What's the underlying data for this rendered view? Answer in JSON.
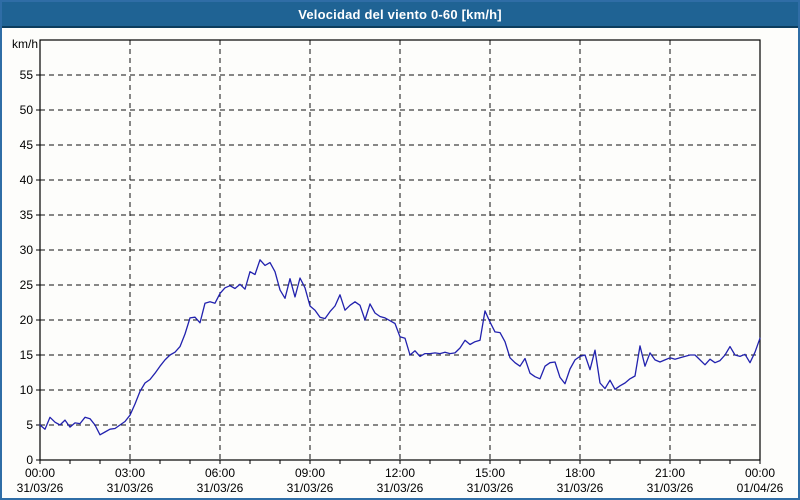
{
  "window": {
    "title": "Velocidad del viento 0-60 [km/h]"
  },
  "colors": {
    "titlebar_bg": "#1F6394",
    "titlebar_border": "#0C3D5E",
    "window_border": "#2F6DA6",
    "plot_bg": "#FDFDFB",
    "grid": "#111111",
    "axis": "#000000",
    "text": "#000000",
    "line": "#2222AE"
  },
  "chart_data": {
    "type": "line",
    "title": "Velocidad del viento 0-60 [km/h]",
    "ylabel": "km/h",
    "ylim": [
      0,
      60
    ],
    "yticks": [
      0,
      5,
      10,
      15,
      20,
      25,
      30,
      35,
      40,
      45,
      50,
      55
    ],
    "grid": true,
    "legend": "none",
    "x_total_hours": 24,
    "sample_interval_minutes": 10,
    "minor_tick_every_hours": 1,
    "xticks": [
      {
        "time": "00:00",
        "date": "31/03/26",
        "hour": 0
      },
      {
        "time": "03:00",
        "date": "31/03/26",
        "hour": 3
      },
      {
        "time": "06:00",
        "date": "31/03/26",
        "hour": 6
      },
      {
        "time": "09:00",
        "date": "31/03/26",
        "hour": 9
      },
      {
        "time": "12:00",
        "date": "31/03/26",
        "hour": 12
      },
      {
        "time": "15:00",
        "date": "31/03/26",
        "hour": 15
      },
      {
        "time": "18:00",
        "date": "31/03/26",
        "hour": 18
      },
      {
        "time": "21:00",
        "date": "31/03/26",
        "hour": 21
      },
      {
        "time": "00:00",
        "date": "01/04/26",
        "hour": 24
      }
    ],
    "series": [
      {
        "name": "Velocidad del viento",
        "color": "#2222AE",
        "values": [
          5.0,
          4.4,
          6.1,
          5.4,
          5.0,
          5.7,
          4.7,
          5.3,
          5.2,
          6.1,
          5.9,
          5.0,
          3.6,
          4.0,
          4.4,
          4.5,
          5.0,
          5.5,
          6.4,
          8.0,
          9.8,
          11.0,
          11.5,
          12.4,
          13.4,
          14.3,
          15.0,
          15.4,
          16.2,
          18.0,
          20.3,
          20.4,
          19.6,
          22.4,
          22.6,
          22.4,
          23.8,
          24.6,
          24.9,
          24.5,
          25.1,
          24.4,
          26.9,
          26.5,
          28.6,
          27.8,
          28.2,
          26.9,
          24.3,
          23.1,
          25.9,
          23.3,
          26.0,
          24.6,
          22.0,
          21.4,
          20.4,
          20.2,
          21.2,
          22.0,
          23.6,
          21.4,
          22.1,
          22.6,
          22.1,
          20.0,
          22.3,
          21.0,
          20.5,
          20.3,
          19.9,
          19.5,
          17.6,
          17.4,
          15.0,
          15.6,
          14.8,
          15.2,
          15.2,
          15.3,
          15.2,
          15.4,
          15.2,
          15.3,
          16.0,
          17.1,
          16.5,
          16.9,
          17.1,
          21.3,
          19.7,
          18.3,
          18.2,
          16.9,
          14.6,
          13.9,
          13.4,
          14.5,
          12.4,
          11.9,
          11.6,
          13.4,
          13.9,
          14.0,
          11.8,
          10.9,
          13.0,
          14.3,
          14.8,
          15.0,
          12.9,
          15.7,
          11.0,
          10.2,
          11.4,
          10.1,
          10.6,
          11.0,
          11.6,
          12.0,
          16.3,
          13.4,
          15.3,
          14.3,
          14.0,
          14.3,
          14.6,
          14.4,
          14.6,
          14.8,
          15.0,
          15.0,
          14.3,
          13.6,
          14.4,
          13.9,
          14.2,
          15.0,
          16.2,
          15.0,
          14.8,
          15.1,
          13.9,
          15.4,
          17.4
        ]
      }
    ]
  }
}
